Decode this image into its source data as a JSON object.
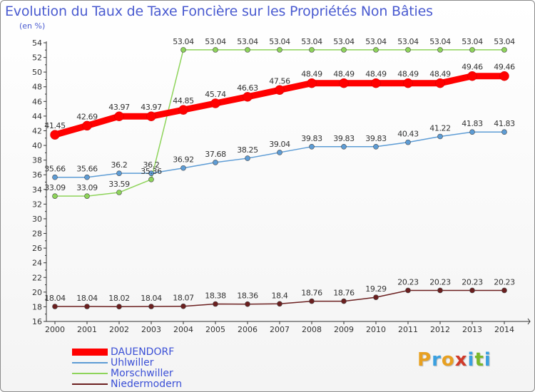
{
  "title": "Evolution du Taux de Taxe Foncière sur les Propriétés Non Bâties",
  "unit_label": "(en %)",
  "logo": {
    "text": "Proxiti",
    "letters": [
      "P",
      "r",
      "o",
      "x",
      "i",
      "t",
      "i"
    ],
    "colors": [
      "#e8a020",
      "#3aa0e0",
      "#e8a020",
      "#d03a2a",
      "#3aa0e0",
      "#7ab82a",
      "#3aa0e0"
    ]
  },
  "chart_data": {
    "type": "line",
    "title": "Evolution du Taux de Taxe Foncière sur les Propriétés Non Bâties",
    "ylabel": "(en %)",
    "xlabel": "",
    "x": [
      "2000",
      "2001",
      "2002",
      "2003",
      "2004",
      "2005",
      "2006",
      "2007",
      "2008",
      "2009",
      "2010",
      "2011",
      "2012",
      "2013",
      "2014"
    ],
    "ylim": [
      16,
      54
    ],
    "yticks": [
      16,
      18,
      20,
      22,
      24,
      26,
      28,
      30,
      32,
      34,
      36,
      38,
      40,
      42,
      44,
      46,
      48,
      50,
      52,
      54
    ],
    "grid": false,
    "legend_position": "bottom-left",
    "series": [
      {
        "name": "DAUENDORF",
        "color": "#ff0000",
        "values": [
          41.45,
          42.69,
          43.97,
          43.97,
          44.85,
          45.74,
          46.63,
          47.56,
          48.49,
          48.49,
          48.49,
          48.49,
          48.49,
          49.46,
          49.46
        ],
        "labels": [
          "41.45",
          "42.69",
          "43.97",
          "43.97",
          "44.85",
          "45.74",
          "46.63",
          "47.56",
          "48.49",
          "48.49",
          "48.49",
          "48.49",
          "48.49",
          "49.46",
          "49.46"
        ]
      },
      {
        "name": "Uhlwiller",
        "color": "#5d9cd5",
        "values": [
          35.66,
          35.66,
          36.2,
          36.2,
          36.92,
          37.68,
          38.25,
          39.04,
          39.83,
          39.83,
          39.83,
          40.43,
          41.22,
          41.83,
          41.83
        ],
        "labels": [
          "35.66",
          "35.66",
          "36.2",
          "36.2",
          "36.92",
          "37.68",
          "38.25",
          "39.04",
          "39.83",
          "39.83",
          "39.83",
          "40.43",
          "41.22",
          "41.83",
          "41.83"
        ]
      },
      {
        "name": "Morschwiller",
        "color": "#8ed45a",
        "values": [
          33.09,
          33.09,
          33.59,
          35.36,
          53.04,
          53.04,
          53.04,
          53.04,
          53.04,
          53.04,
          53.04,
          53.04,
          53.04,
          53.04,
          53.04
        ],
        "labels": [
          "33.09",
          "33.09",
          "33.59",
          "35.36",
          "53.04",
          "53.04",
          "53.04",
          "53.04",
          "53.04",
          "53.04",
          "53.04",
          "53.04",
          "53.04",
          "53.04",
          "53.04"
        ]
      },
      {
        "name": "Niedermodern",
        "color": "#6b1f1f",
        "values": [
          18.04,
          18.04,
          18.02,
          18.04,
          18.07,
          18.38,
          18.36,
          18.4,
          18.76,
          18.76,
          19.29,
          20.23,
          20.23,
          20.23,
          20.23
        ],
        "labels": [
          "18.04",
          "18.04",
          "18.02",
          "18.04",
          "18.07",
          "18.38",
          "18.36",
          "18.4",
          "18.76",
          "18.76",
          "19.29",
          "20.23",
          "20.23",
          "20.23",
          "20.23"
        ]
      }
    ]
  }
}
